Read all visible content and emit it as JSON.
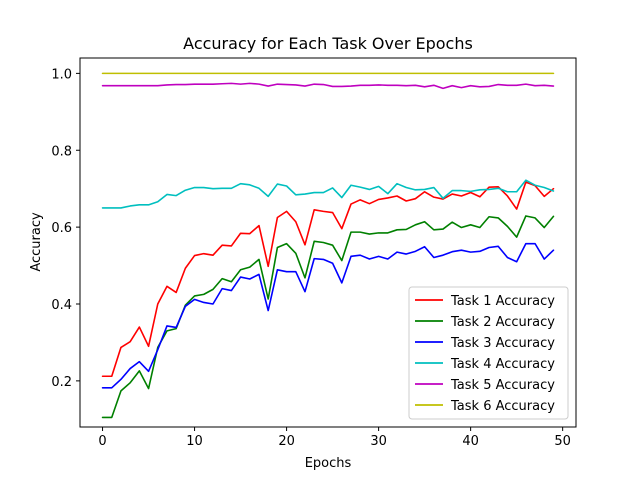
{
  "chart_data": {
    "type": "line",
    "title": "Accuracy for Each Task Over Epochs",
    "xlabel": "Epochs",
    "ylabel": "Accuracy",
    "xlim": [
      -2.45,
      51.45
    ],
    "ylim": [
      0.08,
      1.04
    ],
    "xticks": [
      0,
      10,
      20,
      30,
      40,
      50
    ],
    "yticks": [
      0.2,
      0.4,
      0.6,
      0.8,
      1.0
    ],
    "xtick_labels": [
      "0",
      "10",
      "20",
      "30",
      "40",
      "50"
    ],
    "ytick_labels": [
      "0.2",
      "0.4",
      "0.6",
      "0.8",
      "1.0"
    ],
    "grid": false,
    "legend_position": "lower-right",
    "x": [
      0,
      1,
      2,
      3,
      4,
      5,
      6,
      7,
      8,
      9,
      10,
      11,
      12,
      13,
      14,
      15,
      16,
      17,
      18,
      19,
      20,
      21,
      22,
      23,
      24,
      25,
      26,
      27,
      28,
      29,
      30,
      31,
      32,
      33,
      34,
      35,
      36,
      37,
      38,
      39,
      40,
      41,
      42,
      43,
      44,
      45,
      46,
      47,
      48,
      49
    ],
    "series": [
      {
        "name": "Task 1 Accuracy",
        "color": "#ff0000",
        "values": [
          0.212,
          0.212,
          0.287,
          0.302,
          0.34,
          0.29,
          0.4,
          0.446,
          0.43,
          0.493,
          0.526,
          0.531,
          0.527,
          0.553,
          0.551,
          0.584,
          0.583,
          0.604,
          0.498,
          0.625,
          0.641,
          0.614,
          0.554,
          0.645,
          0.641,
          0.638,
          0.596,
          0.66,
          0.671,
          0.661,
          0.672,
          0.676,
          0.681,
          0.668,
          0.674,
          0.692,
          0.678,
          0.673,
          0.686,
          0.681,
          0.69,
          0.679,
          0.704,
          0.705,
          0.681,
          0.647,
          0.717,
          0.708,
          0.68,
          0.7
        ]
      },
      {
        "name": "Task 2 Accuracy",
        "color": "#008000",
        "values": [
          0.105,
          0.105,
          0.174,
          0.195,
          0.226,
          0.18,
          0.287,
          0.33,
          0.336,
          0.397,
          0.421,
          0.425,
          0.438,
          0.466,
          0.458,
          0.489,
          0.496,
          0.516,
          0.413,
          0.547,
          0.557,
          0.532,
          0.468,
          0.563,
          0.56,
          0.553,
          0.513,
          0.587,
          0.587,
          0.582,
          0.585,
          0.585,
          0.593,
          0.594,
          0.606,
          0.614,
          0.593,
          0.595,
          0.613,
          0.599,
          0.606,
          0.599,
          0.627,
          0.624,
          0.602,
          0.574,
          0.629,
          0.624,
          0.599,
          0.628
        ]
      },
      {
        "name": "Task 3 Accuracy",
        "color": "#0000ff",
        "values": [
          0.182,
          0.182,
          0.204,
          0.232,
          0.25,
          0.225,
          0.281,
          0.343,
          0.339,
          0.394,
          0.412,
          0.404,
          0.4,
          0.44,
          0.435,
          0.47,
          0.465,
          0.477,
          0.383,
          0.489,
          0.484,
          0.484,
          0.432,
          0.518,
          0.516,
          0.506,
          0.455,
          0.524,
          0.527,
          0.517,
          0.524,
          0.517,
          0.535,
          0.53,
          0.537,
          0.549,
          0.521,
          0.527,
          0.536,
          0.54,
          0.535,
          0.537,
          0.547,
          0.55,
          0.521,
          0.51,
          0.557,
          0.557,
          0.517,
          0.54
        ]
      },
      {
        "name": "Task 4 Accuracy",
        "color": "#00bfbf",
        "values": [
          0.65,
          0.65,
          0.65,
          0.655,
          0.658,
          0.658,
          0.666,
          0.685,
          0.682,
          0.696,
          0.703,
          0.703,
          0.7,
          0.701,
          0.701,
          0.713,
          0.71,
          0.701,
          0.68,
          0.712,
          0.707,
          0.684,
          0.686,
          0.69,
          0.69,
          0.702,
          0.677,
          0.709,
          0.704,
          0.698,
          0.706,
          0.687,
          0.713,
          0.703,
          0.697,
          0.698,
          0.703,
          0.675,
          0.695,
          0.695,
          0.693,
          0.697,
          0.698,
          0.701,
          0.692,
          0.692,
          0.722,
          0.709,
          0.703,
          0.694
        ]
      },
      {
        "name": "Task 5 Accuracy",
        "color": "#bf00bf",
        "values": [
          0.968,
          0.968,
          0.968,
          0.968,
          0.968,
          0.968,
          0.968,
          0.97,
          0.971,
          0.971,
          0.972,
          0.972,
          0.972,
          0.973,
          0.974,
          0.972,
          0.974,
          0.972,
          0.967,
          0.972,
          0.971,
          0.97,
          0.967,
          0.972,
          0.971,
          0.966,
          0.966,
          0.967,
          0.969,
          0.969,
          0.97,
          0.969,
          0.969,
          0.968,
          0.969,
          0.965,
          0.969,
          0.961,
          0.968,
          0.963,
          0.968,
          0.965,
          0.966,
          0.971,
          0.969,
          0.969,
          0.972,
          0.968,
          0.969,
          0.967
        ]
      },
      {
        "name": "Task 6 Accuracy",
        "color": "#bfbf00",
        "values": [
          1.0,
          1.0,
          1.0,
          1.0,
          1.0,
          1.0,
          1.0,
          1.0,
          1.0,
          1.0,
          1.0,
          1.0,
          1.0,
          1.0,
          1.0,
          1.0,
          1.0,
          1.0,
          1.0,
          1.0,
          1.0,
          1.0,
          1.0,
          1.0,
          1.0,
          1.0,
          1.0,
          1.0,
          1.0,
          1.0,
          1.0,
          1.0,
          1.0,
          1.0,
          1.0,
          1.0,
          1.0,
          1.0,
          1.0,
          1.0,
          1.0,
          1.0,
          1.0,
          1.0,
          1.0,
          1.0,
          1.0,
          1.0,
          1.0,
          1.0
        ]
      }
    ]
  }
}
